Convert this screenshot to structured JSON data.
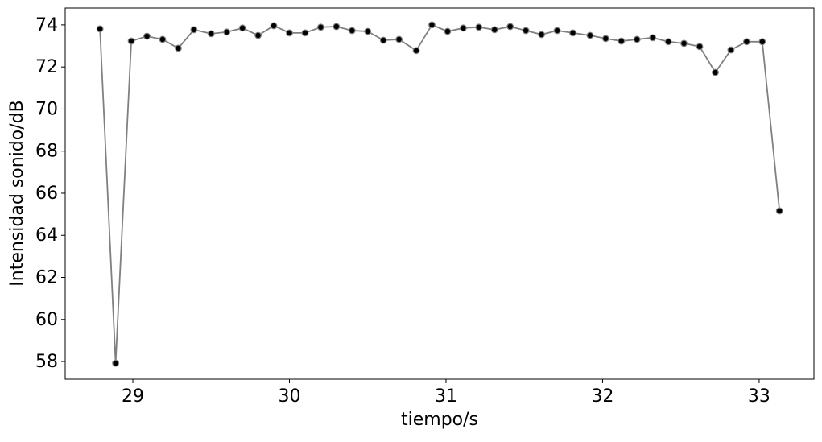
{
  "chart_data": {
    "type": "line",
    "x_label": "tiempo/s",
    "y_label": "Intensidad sonido/dB",
    "x": [
      28.79,
      28.89,
      28.99,
      29.09,
      29.19,
      29.29,
      29.39,
      29.5,
      29.6,
      29.7,
      29.8,
      29.9,
      30.0,
      30.1,
      30.2,
      30.3,
      30.4,
      30.5,
      30.6,
      30.7,
      30.81,
      30.91,
      31.01,
      31.11,
      31.21,
      31.31,
      31.41,
      31.51,
      31.61,
      31.71,
      31.81,
      31.92,
      32.02,
      32.12,
      32.22,
      32.32,
      32.42,
      32.52,
      32.62,
      32.72,
      32.82,
      32.92,
      33.02,
      33.13
    ],
    "series": [
      {
        "color": "#808080",
        "marker_color": "#000000",
        "values": [
          73.81,
          57.92,
          73.23,
          73.46,
          73.31,
          72.89,
          73.77,
          73.58,
          73.66,
          73.85,
          73.5,
          73.96,
          73.62,
          73.62,
          73.89,
          73.92,
          73.73,
          73.69,
          73.27,
          73.31,
          72.78,
          74.0,
          73.69,
          73.85,
          73.89,
          73.77,
          73.92,
          73.73,
          73.54,
          73.73,
          73.62,
          73.5,
          73.35,
          73.23,
          73.31,
          73.39,
          73.2,
          73.12,
          72.97,
          71.74,
          72.81,
          73.2,
          73.2,
          65.16
        ]
      }
    ],
    "xlim": [
      28.568,
      33.35
    ],
    "ylim": [
      57.16,
      74.8
    ],
    "xticks": [
      29,
      30,
      31,
      32,
      33
    ],
    "yticks": [
      58,
      60,
      62,
      64,
      66,
      68,
      70,
      72,
      74
    ],
    "grid": false
  }
}
